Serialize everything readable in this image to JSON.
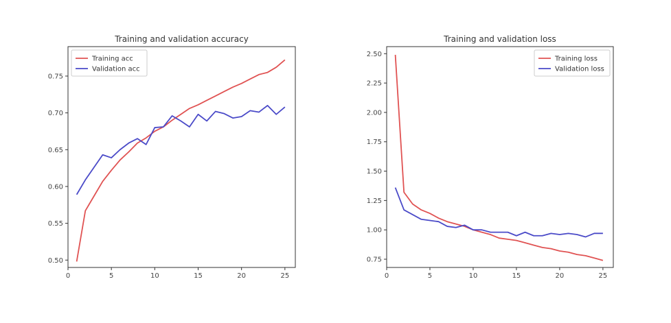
{
  "chart_data": [
    {
      "type": "line",
      "title": "Training and validation accuracy",
      "xlabel": "",
      "ylabel": "",
      "xlim": [
        0,
        26.2
      ],
      "ylim": [
        0.49,
        0.79
      ],
      "xticks": [
        0,
        5,
        10,
        15,
        20,
        25
      ],
      "yticks": [
        0.5,
        0.55,
        0.6,
        0.65,
        0.7,
        0.75
      ],
      "ytick_labels": [
        "0.50",
        "0.55",
        "0.60",
        "0.65",
        "0.70",
        "0.75"
      ],
      "grid": false,
      "legend": "top-left",
      "x": [
        1,
        2,
        3,
        4,
        5,
        6,
        7,
        8,
        9,
        10,
        11,
        12,
        13,
        14,
        15,
        16,
        17,
        18,
        19,
        20,
        21,
        22,
        23,
        24,
        25
      ],
      "series": [
        {
          "name": "Training acc",
          "color": "#e05252",
          "values": [
            0.498,
            0.567,
            0.587,
            0.607,
            0.622,
            0.636,
            0.647,
            0.659,
            0.666,
            0.675,
            0.681,
            0.69,
            0.698,
            0.706,
            0.711,
            0.717,
            0.723,
            0.729,
            0.735,
            0.74,
            0.746,
            0.752,
            0.755,
            0.762,
            0.772
          ]
        },
        {
          "name": "Validation acc",
          "color": "#4a4ac8",
          "values": [
            0.589,
            0.609,
            0.626,
            0.643,
            0.639,
            0.65,
            0.659,
            0.665,
            0.657,
            0.68,
            0.681,
            0.696,
            0.689,
            0.681,
            0.698,
            0.689,
            0.702,
            0.699,
            0.693,
            0.695,
            0.703,
            0.701,
            0.71,
            0.698,
            0.708
          ]
        }
      ]
    },
    {
      "type": "line",
      "title": "Training and validation loss",
      "xlabel": "",
      "ylabel": "",
      "xlim": [
        0,
        26.2
      ],
      "ylim": [
        0.68,
        2.56
      ],
      "xticks": [
        0,
        5,
        10,
        15,
        20,
        25
      ],
      "yticks": [
        0.75,
        1.0,
        1.25,
        1.5,
        1.75,
        2.0,
        2.25,
        2.5
      ],
      "ytick_labels": [
        "0.75",
        "1.00",
        "1.25",
        "1.50",
        "1.75",
        "2.00",
        "2.25",
        "2.50"
      ],
      "grid": false,
      "legend": "top-right",
      "x": [
        1,
        2,
        3,
        4,
        5,
        6,
        7,
        8,
        9,
        10,
        11,
        12,
        13,
        14,
        15,
        16,
        17,
        18,
        19,
        20,
        21,
        22,
        23,
        24,
        25
      ],
      "series": [
        {
          "name": "Training loss",
          "color": "#e05252",
          "values": [
            2.49,
            1.32,
            1.22,
            1.17,
            1.14,
            1.1,
            1.07,
            1.05,
            1.03,
            1.0,
            0.98,
            0.96,
            0.93,
            0.92,
            0.91,
            0.89,
            0.87,
            0.85,
            0.84,
            0.82,
            0.81,
            0.79,
            0.78,
            0.76,
            0.74
          ]
        },
        {
          "name": "Validation loss",
          "color": "#4a4ac8",
          "values": [
            1.36,
            1.17,
            1.13,
            1.09,
            1.08,
            1.07,
            1.03,
            1.02,
            1.04,
            1.0,
            1.0,
            0.98,
            0.98,
            0.98,
            0.95,
            0.98,
            0.95,
            0.95,
            0.97,
            0.96,
            0.97,
            0.96,
            0.94,
            0.97,
            0.97
          ]
        }
      ]
    }
  ]
}
